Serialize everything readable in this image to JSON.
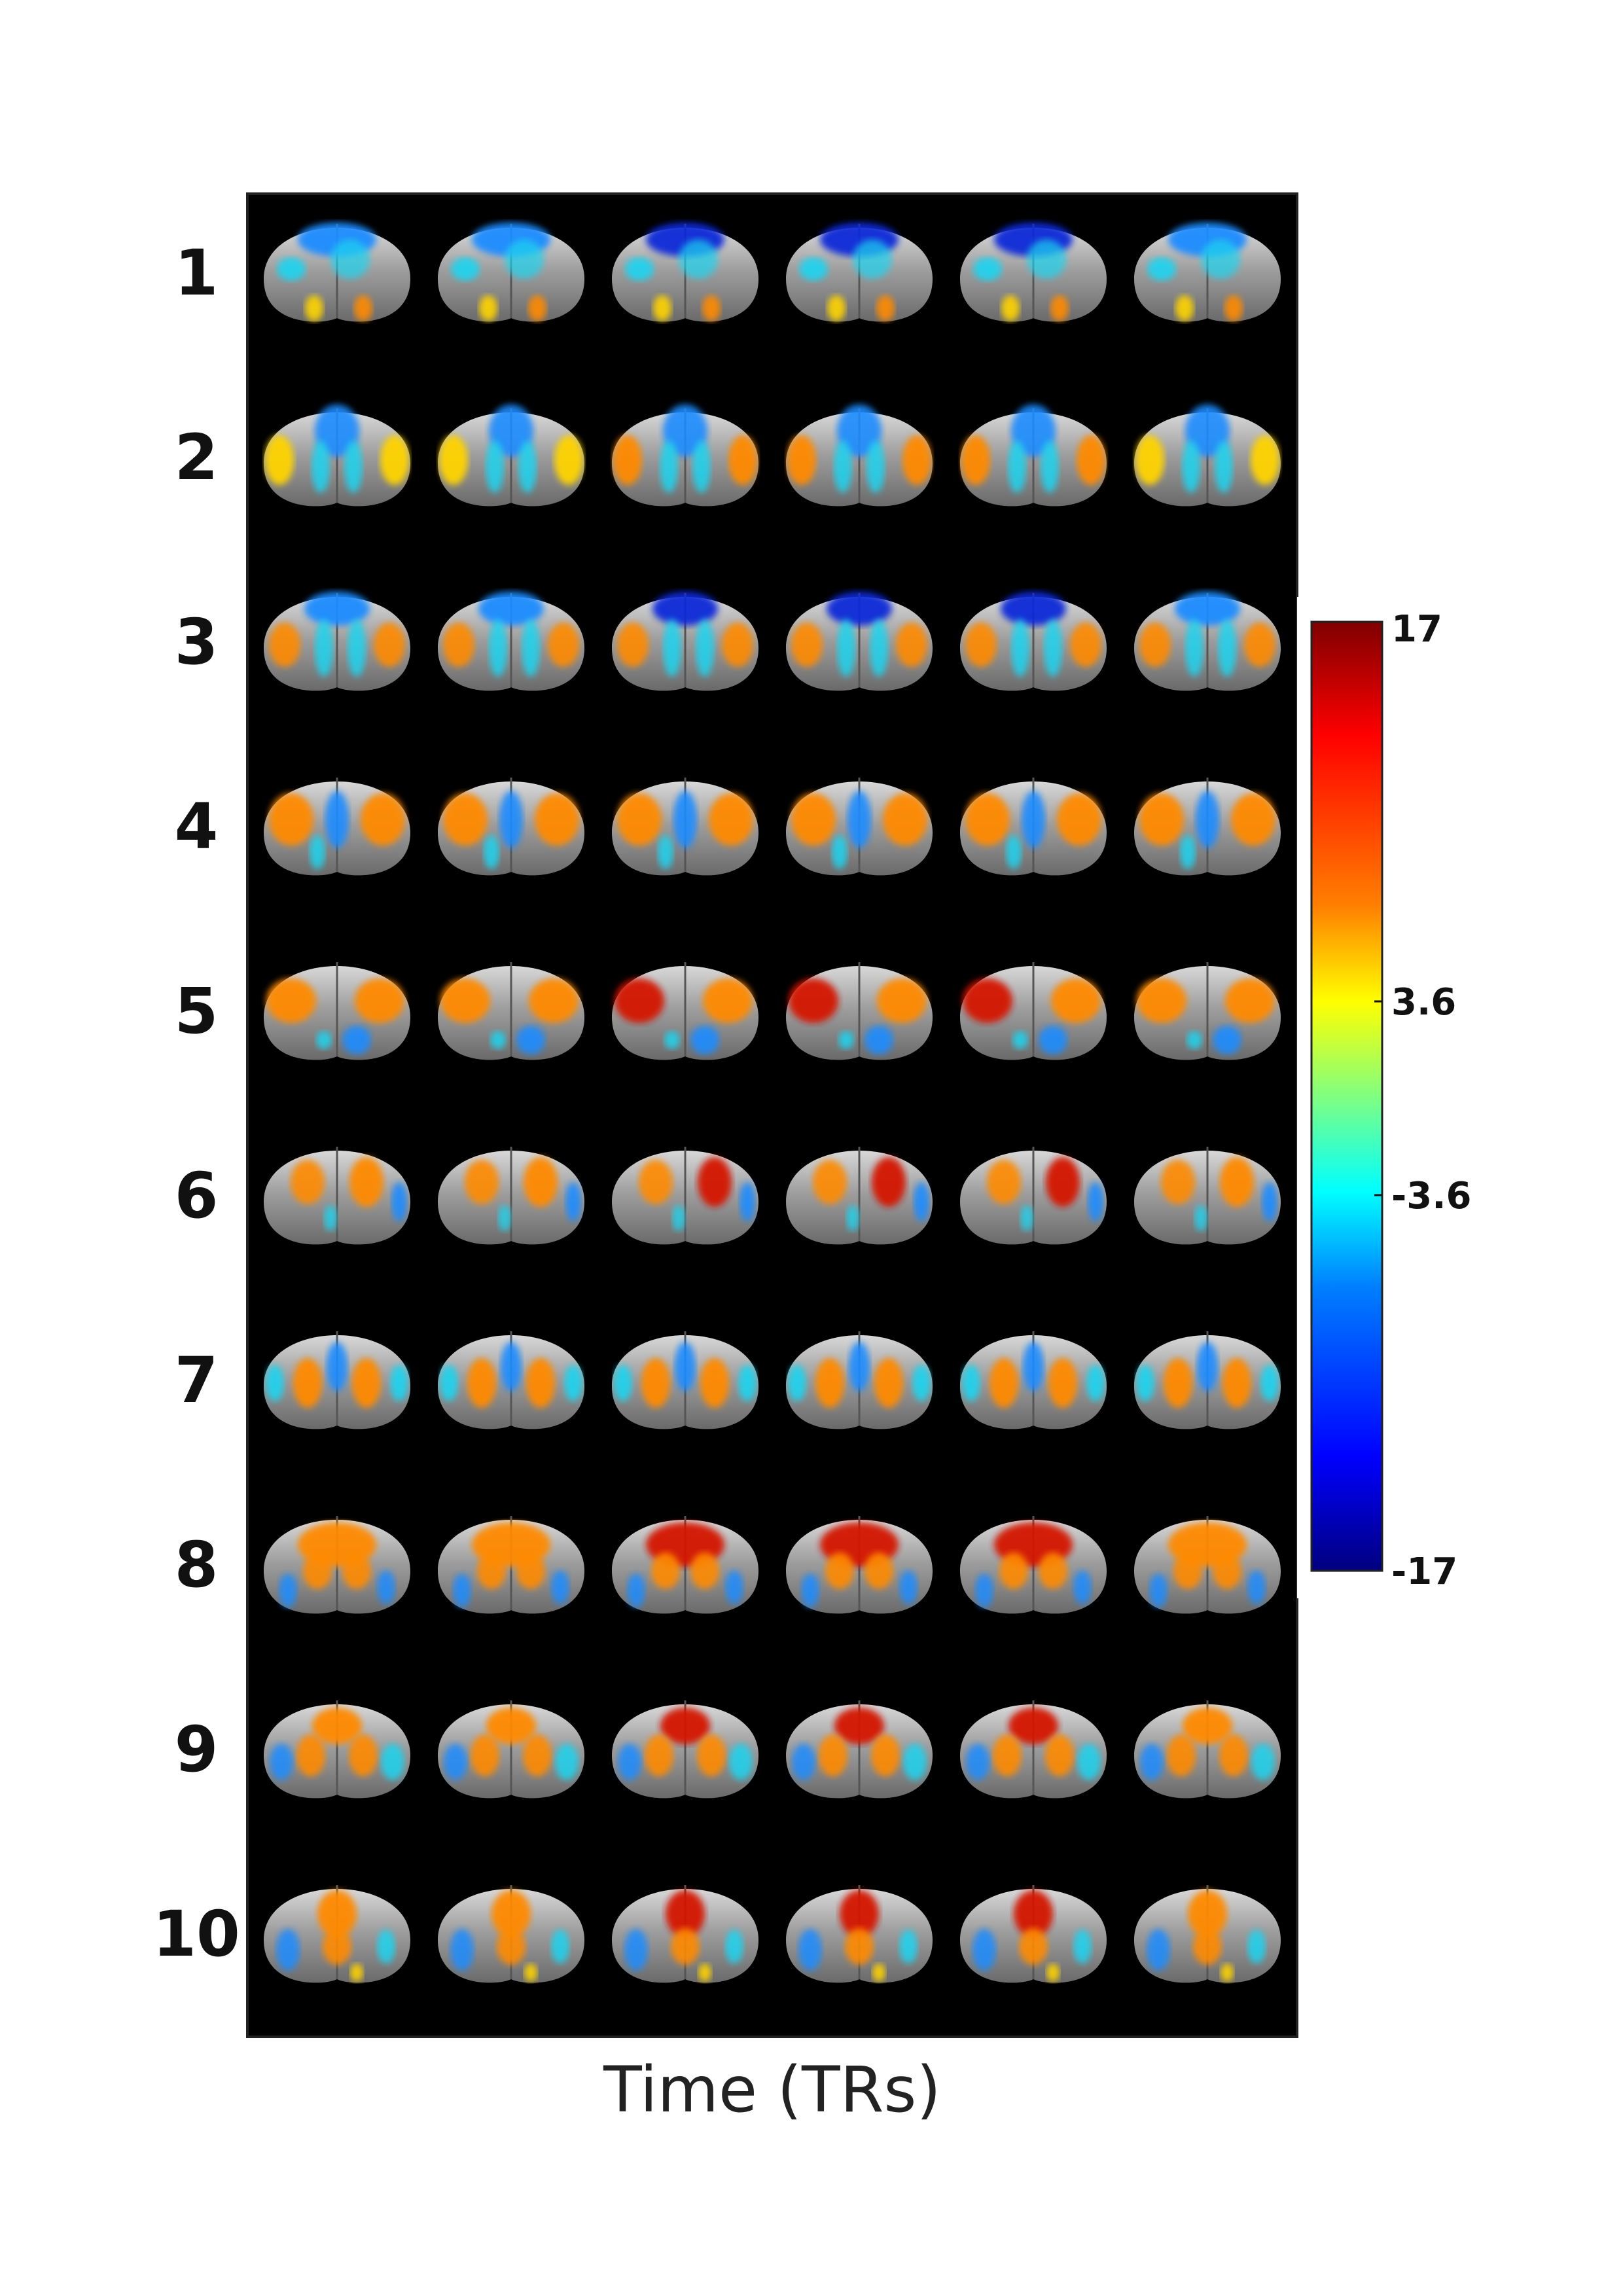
{
  "figure": {
    "row_labels": [
      "1",
      "2",
      "3",
      "4",
      "5",
      "6",
      "7",
      "8",
      "9",
      "10"
    ],
    "columns": 6,
    "x_axis_label": "Time (TRs)"
  },
  "colorbar": {
    "max_label": "17",
    "upper_threshold_label": "3.6",
    "lower_threshold_label": "-3.6",
    "min_label": "-17",
    "range": [
      -17,
      17
    ],
    "thresholds": [
      -3.6,
      3.6
    ],
    "colormap": "jet"
  },
  "colors": {
    "panel_background": "#000000",
    "brain_gray": "#8c8c8c",
    "positive_low": "#ffd400",
    "positive_mid": "#ff8a00",
    "positive_high": "#d41400",
    "negative_low": "#1fd4f0",
    "negative_mid": "#1e8cff",
    "negative_high": "#0a2ad8"
  }
}
